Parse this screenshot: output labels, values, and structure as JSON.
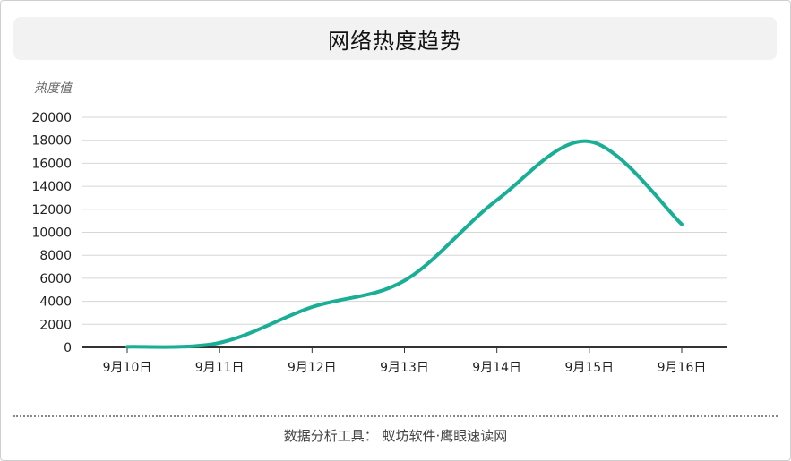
{
  "chart_data": {
    "type": "line",
    "title": "网络热度趋势",
    "ylabel": "热度值",
    "xlabel": "",
    "categories": [
      "9月10日",
      "9月11日",
      "9月12日",
      "9月13日",
      "9月14日",
      "9月15日",
      "9月16日"
    ],
    "series": [
      {
        "values": [
          50,
          400,
          3500,
          5800,
          12800,
          17900,
          10700
        ]
      }
    ],
    "ylim": [
      0,
      20000
    ],
    "yticks": [
      0,
      2000,
      4000,
      6000,
      8000,
      10000,
      12000,
      14000,
      16000,
      18000,
      20000
    ],
    "grid": true,
    "line_color": "#1aae96"
  },
  "footer": "数据分析工具： 蚁坊软件·鹰眼速读网"
}
